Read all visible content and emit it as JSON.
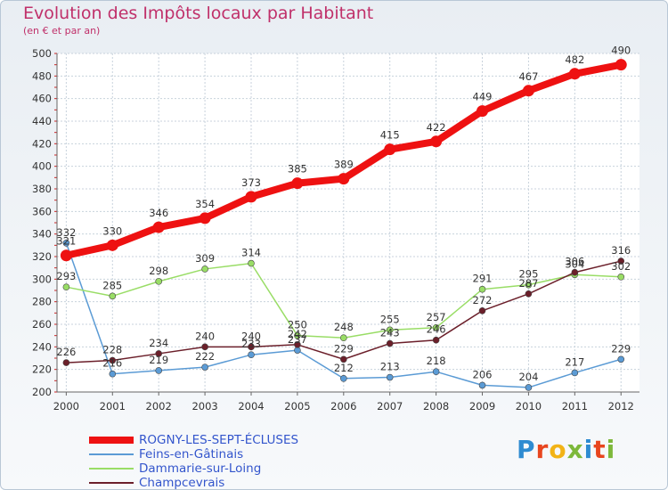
{
  "title": "Evolution des Impôts locaux par Habitant",
  "subtitle": "(en € et par an)",
  "logo": {
    "text": "Proxiti",
    "colors": [
      "#2e8bd1",
      "#e8461f",
      "#f2b316",
      "#7db83a",
      "#2e8bd1",
      "#e8461f",
      "#7db83a"
    ]
  },
  "chart_data": {
    "type": "line",
    "x": [
      "2000",
      "2001",
      "2002",
      "2003",
      "2004",
      "2005",
      "2006",
      "2007",
      "2008",
      "2009",
      "2010",
      "2011",
      "2012"
    ],
    "ylim": [
      200,
      500
    ],
    "yticks": [
      200,
      220,
      240,
      260,
      280,
      300,
      320,
      340,
      360,
      380,
      400,
      420,
      440,
      460,
      480,
      500
    ],
    "grid": true,
    "legend_position": "bottom-left",
    "series": [
      {
        "name": "ROGNY-LES-SEPT-ÉCLUSES",
        "color": "#ee1111",
        "values": [
          321,
          330,
          346,
          354,
          373,
          385,
          389,
          415,
          422,
          449,
          467,
          482,
          490
        ]
      },
      {
        "name": "Feins-en-Gâtinais",
        "color": "#5b9bd5",
        "values": [
          332,
          216,
          219,
          222,
          233,
          237,
          212,
          213,
          218,
          206,
          204,
          217,
          229
        ]
      },
      {
        "name": "Dammarie-sur-Loing",
        "color": "#99dd66",
        "values": [
          293,
          285,
          298,
          309,
          314,
          250,
          248,
          255,
          257,
          291,
          295,
          304,
          302
        ]
      },
      {
        "name": "Champcevrais",
        "color": "#6b1f2a",
        "values": [
          226,
          228,
          234,
          240,
          240,
          242,
          229,
          243,
          246,
          272,
          287,
          306,
          316
        ]
      }
    ]
  }
}
